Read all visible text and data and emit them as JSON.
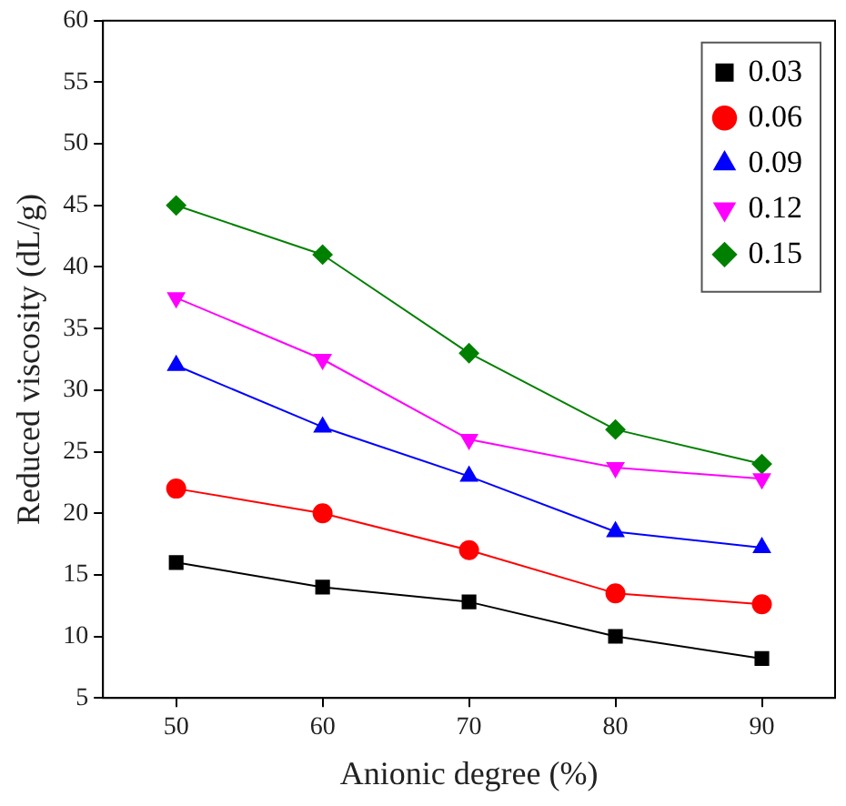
{
  "chart_data": {
    "type": "line",
    "xlabel": "Anionic degree (%)",
    "ylabel": "Reduced viscosity (dL/g)",
    "x": [
      50,
      60,
      70,
      80,
      90
    ],
    "series": [
      {
        "name": "0.03",
        "color": "#000000",
        "marker": "square",
        "values": [
          16,
          14,
          12.8,
          10,
          8.2
        ]
      },
      {
        "name": "0.06",
        "color": "#ff0000",
        "marker": "circle",
        "values": [
          22,
          20,
          17,
          13.5,
          12.6
        ]
      },
      {
        "name": "0.09",
        "color": "#0000ff",
        "marker": "triangle",
        "values": [
          32,
          27,
          23,
          18.5,
          17.2
        ]
      },
      {
        "name": "0.12",
        "color": "#ff00ff",
        "marker": "triangle-down",
        "values": [
          37.5,
          32.5,
          26,
          23.7,
          22.8
        ]
      },
      {
        "name": "0.15",
        "color": "#008000",
        "marker": "diamond",
        "values": [
          45,
          41,
          33,
          26.8,
          24
        ]
      }
    ],
    "xlim": [
      45,
      95
    ],
    "xticks": [
      50,
      60,
      70,
      80,
      90
    ],
    "ylim": [
      5,
      60
    ],
    "yticks": [
      5,
      10,
      15,
      20,
      25,
      30,
      35,
      40,
      45,
      50,
      55,
      60
    ],
    "grid": false,
    "legend": "top right",
    "line_style": "solid"
  }
}
